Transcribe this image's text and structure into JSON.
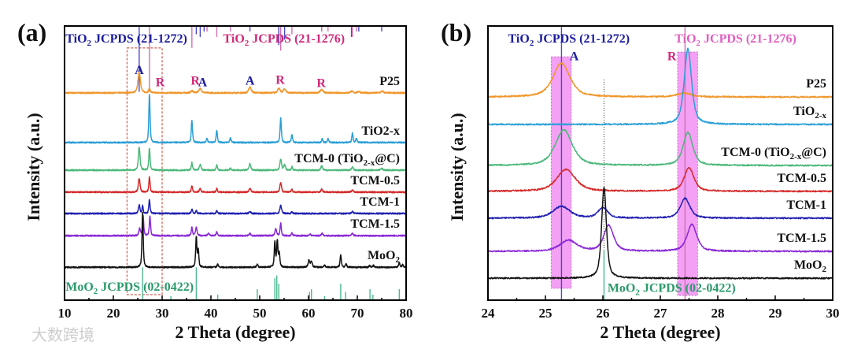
{
  "watermark": "大数跨境",
  "chart_data": [
    {
      "type": "line",
      "panel_label": "(a)",
      "xlabel": "2 Theta (degree)",
      "ylabel": "Intensity (a.u.)",
      "xlim": [
        10,
        80
      ],
      "ylim": [
        0,
        100
      ],
      "xticks": [
        10,
        20,
        30,
        40,
        50,
        60,
        70,
        80
      ],
      "minor_step": 5,
      "ref_labels": [
        {
          "parts": [
            "TiO",
            "2",
            " JCPDS (21-1272)"
          ],
          "color": "#1c1ca0",
          "x": 10.2,
          "y": 94
        },
        {
          "parts": [
            "TiO",
            "2",
            " JCPDS (21-1276)"
          ],
          "color": "#d02a7a",
          "x": 42.5,
          "y": 94
        },
        {
          "parts": [
            "MoO",
            "2",
            " JCPDS (02-0422)"
          ],
          "color": "#2a9a6a",
          "x": 10.2,
          "y": 3.5
        }
      ],
      "phase_labels": [
        {
          "text": "A",
          "x": 25.3,
          "y": 82.5,
          "color": "#1c1ca0"
        },
        {
          "text": "R",
          "x": 29.6,
          "y": 78.0,
          "color": "#d02a7a"
        },
        {
          "text": "R",
          "x": 36.8,
          "y": 78.6,
          "color": "#d02a7a"
        },
        {
          "text": "A",
          "x": 38.3,
          "y": 78.0,
          "color": "#1c1ca0"
        },
        {
          "text": "A",
          "x": 48.0,
          "y": 78.6,
          "color": "#1c1ca0"
        },
        {
          "text": "R",
          "x": 54.2,
          "y": 78.9,
          "color": "#d02a7a"
        },
        {
          "text": "R",
          "x": 62.6,
          "y": 77.7,
          "color": "#d02a7a"
        }
      ],
      "highlight_box": {
        "x": [
          22.8,
          30.0
        ],
        "y": [
          2,
          92
        ],
        "style": "dashed",
        "color": "#c0392b"
      },
      "reference_sticks": [
        {
          "name": "anatase 21-1272",
          "color": "#4a4acc",
          "from": "top",
          "positions": [
            25.3,
            37.0,
            37.8,
            38.6,
            48.0,
            53.9,
            55.1,
            62.7,
            68.8,
            70.3,
            75.0
          ],
          "lengths": [
            24,
            3,
            4,
            2,
            2,
            7,
            5,
            2,
            4,
            2,
            2
          ]
        },
        {
          "name": "rutile 21-1276",
          "color": "#d070b0",
          "from": "top",
          "positions": [
            27.4,
            36.1,
            39.2,
            41.2,
            44.0,
            54.3,
            56.6,
            62.7,
            64.0,
            69.0,
            69.8
          ],
          "lengths": [
            24,
            8,
            2,
            4,
            2,
            9,
            3,
            2,
            2,
            4,
            2
          ]
        },
        {
          "name": "MoO2 02-0422",
          "color": "#4cb890",
          "from": "bottom",
          "positions": [
            26.0,
            31.8,
            37.0,
            41.4,
            49.5,
            53.1,
            53.5,
            53.9,
            60.2,
            60.6,
            63.3,
            66.6,
            67.6,
            72.6,
            73.2,
            78.6
          ],
          "lengths": [
            12,
            1.5,
            12,
            2,
            4,
            8,
            9,
            6,
            3,
            4,
            1.5,
            6,
            3,
            4,
            2,
            4
          ]
        }
      ],
      "series": [
        {
          "name": "P25",
          "label_parts": [
            "P25"
          ],
          "color": "#f0962a",
          "offset": 75.6,
          "peaks": [
            [
              25.3,
              7.5,
              0.6
            ],
            [
              27.4,
              1.5,
              0.4
            ],
            [
              36.1,
              0.8,
              0.5
            ],
            [
              37.8,
              1.5,
              0.7
            ],
            [
              48.0,
              2.2,
              0.6
            ],
            [
              53.9,
              1.6,
              0.6
            ],
            [
              55.1,
              1.4,
              0.6
            ],
            [
              62.7,
              1.2,
              0.7
            ],
            [
              68.8,
              0.6,
              0.6
            ],
            [
              70.3,
              0.5,
              0.6
            ],
            [
              75.1,
              0.6,
              0.6
            ]
          ]
        },
        {
          "name": "TiO2-x",
          "label_parts": [
            "TiO2-x"
          ],
          "color": "#2a9fd6",
          "offset": 57.5,
          "peaks": [
            [
              27.4,
              17.5,
              0.3
            ],
            [
              36.1,
              8,
              0.3
            ],
            [
              39.2,
              1.5,
              0.3
            ],
            [
              41.2,
              4.5,
              0.3
            ],
            [
              44.0,
              1.8,
              0.3
            ],
            [
              54.3,
              9,
              0.3
            ],
            [
              56.6,
              3,
              0.3
            ],
            [
              62.8,
              1.4,
              0.3
            ],
            [
              64.0,
              1.3,
              0.3
            ],
            [
              69.0,
              3.5,
              0.3
            ],
            [
              69.8,
              1.5,
              0.3
            ]
          ]
        },
        {
          "name": "TCM-0 (TiO2-x@C)",
          "label_parts": [
            "TCM-0 (TiO",
            "2-x",
            "@C)"
          ],
          "color": "#4cb87a",
          "offset": 47.4,
          "peaks": [
            [
              25.3,
              8.5,
              0.4
            ],
            [
              27.4,
              8,
              0.3
            ],
            [
              36.1,
              2.8,
              0.3
            ],
            [
              37.8,
              2,
              0.4
            ],
            [
              41.2,
              1.8,
              0.3
            ],
            [
              44.0,
              0.8,
              0.3
            ],
            [
              48.0,
              2.4,
              0.4
            ],
            [
              54.3,
              4,
              0.4
            ],
            [
              55.1,
              2,
              0.4
            ],
            [
              56.6,
              1.2,
              0.3
            ],
            [
              62.7,
              1.6,
              0.4
            ],
            [
              69.0,
              1.3,
              0.4
            ],
            [
              75.0,
              0.6,
              0.5
            ]
          ]
        },
        {
          "name": "TCM-0.5",
          "label_parts": [
            "TCM-0.5"
          ],
          "color": "#d42a2a",
          "offset": 39.4,
          "peaks": [
            [
              25.3,
              5,
              0.4
            ],
            [
              27.4,
              5.5,
              0.3
            ],
            [
              36.1,
              2.2,
              0.3
            ],
            [
              37.8,
              1.2,
              0.4
            ],
            [
              41.2,
              1.3,
              0.3
            ],
            [
              48.0,
              1.5,
              0.4
            ],
            [
              54.3,
              3.5,
              0.4
            ],
            [
              56.6,
              1,
              0.3
            ],
            [
              62.7,
              1,
              0.4
            ],
            [
              69.0,
              0.8,
              0.4
            ]
          ]
        },
        {
          "name": "TCM-1",
          "label_parts": [
            "TCM-1"
          ],
          "color": "#2020b0",
          "offset": 31.6,
          "peaks": [
            [
              25.3,
              3,
              0.4
            ],
            [
              26.0,
              2.8,
              0.25
            ],
            [
              27.4,
              5,
              0.3
            ],
            [
              36.1,
              1.6,
              0.3
            ],
            [
              37.0,
              1.1,
              0.3
            ],
            [
              41.2,
              1,
              0.3
            ],
            [
              48.0,
              0.8,
              0.4
            ],
            [
              54.3,
              3,
              0.4
            ],
            [
              56.6,
              0.7,
              0.3
            ],
            [
              69.0,
              0.8,
              0.4
            ]
          ]
        },
        {
          "name": "TCM-1.5",
          "label_parts": [
            "TCM-1.5"
          ],
          "color": "#8a2ad6",
          "offset": 23.5,
          "peaks": [
            [
              25.4,
              2.5,
              0.4
            ],
            [
              26.1,
              7.5,
              0.3
            ],
            [
              27.5,
              7,
              0.3
            ],
            [
              36.1,
              3,
              0.3
            ],
            [
              37.0,
              3,
              0.4
            ],
            [
              39.5,
              0.8,
              0.4
            ],
            [
              41.2,
              1.5,
              0.3
            ],
            [
              48.0,
              0.8,
              0.4
            ],
            [
              53.3,
              2.5,
              0.4
            ],
            [
              54.3,
              4.5,
              0.3
            ],
            [
              56.6,
              1,
              0.3
            ],
            [
              60.3,
              0.6,
              0.4
            ],
            [
              62.8,
              0.8,
              0.4
            ],
            [
              69.0,
              0.8,
              0.4
            ]
          ]
        },
        {
          "name": "MoO2",
          "label_parts": [
            "MoO",
            "2"
          ],
          "color": "#111111",
          "offset": 12.0,
          "peaks": [
            [
              26.0,
              20,
              0.3
            ],
            [
              37.0,
              11,
              0.3
            ],
            [
              37.4,
              6,
              0.3
            ],
            [
              41.4,
              1.2,
              0.3
            ],
            [
              49.5,
              1.2,
              0.3
            ],
            [
              53.1,
              9,
              0.3
            ],
            [
              53.6,
              9.5,
              0.3
            ],
            [
              54.0,
              5,
              0.3
            ],
            [
              60.1,
              2.5,
              0.4
            ],
            [
              60.6,
              2,
              0.4
            ],
            [
              63.3,
              0.8,
              0.3
            ],
            [
              66.6,
              4.5,
              0.3
            ],
            [
              67.7,
              1.2,
              0.3
            ],
            [
              72.5,
              0.6,
              0.3
            ],
            [
              73.3,
              0.7,
              0.3
            ],
            [
              78.6,
              1.8,
              0.3
            ],
            [
              79.3,
              1,
              0.3
            ]
          ]
        }
      ]
    },
    {
      "type": "line",
      "panel_label": "(b)",
      "xlabel": "2 Theta (degree)",
      "ylabel": "Intensity (a.u.)",
      "xlim": [
        24,
        30
      ],
      "ylim": [
        0,
        100
      ],
      "xticks": [
        24,
        25,
        26,
        27,
        28,
        29,
        30
      ],
      "minor_step": 0.5,
      "ref_labels": [
        {
          "parts": [
            "TiO",
            "2",
            " JCPDS (21-1272)"
          ],
          "color": "#1c1ca0",
          "x": 24.35,
          "y": 94
        },
        {
          "parts": [
            "TiO",
            "2",
            " JCPDS (21-1276)"
          ],
          "color": "#e060c0",
          "x": 27.25,
          "y": 94
        },
        {
          "parts": [
            "MoO",
            "2",
            " JCPDS (02-0422)"
          ],
          "color": "#2a9a6a",
          "x": 26.08,
          "y": 3.0
        }
      ],
      "phase_labels": [
        {
          "text": "A",
          "x": 25.5,
          "y": 87.5,
          "color": "#1c1ca0"
        },
        {
          "text": "R",
          "x": 27.2,
          "y": 87.5,
          "color": "#d02a7a"
        }
      ],
      "highlight_bands": [
        {
          "x": [
            25.1,
            25.45
          ],
          "y": [
            4.3,
            88.8
          ],
          "color": "#f080f0"
        },
        {
          "x": [
            27.3,
            27.65
          ],
          "y": [
            1.7,
            90.5
          ],
          "color": "#f080f0"
        }
      ],
      "dotted_line": {
        "x": 26.02,
        "y": [
          0,
          81
        ]
      },
      "reference_sticks": [
        {
          "name": "anatase 21-1272",
          "color": "#4a4acc",
          "from": "top",
          "positions": [
            25.28
          ],
          "lengths": [
            100
          ]
        },
        {
          "name": "rutile 21-1276",
          "color": "#d070b0",
          "from": "top",
          "positions": [
            27.43
          ],
          "lengths": [
            100
          ]
        },
        {
          "name": "MoO2 02-0422",
          "color": "#4cb890",
          "from": "bottom",
          "positions": [
            26.02
          ],
          "lengths": [
            18
          ]
        }
      ],
      "series": [
        {
          "name": "P25",
          "label_parts": [
            "P25"
          ],
          "color": "#f0962a",
          "offset": 74.1,
          "peaks": [
            [
              25.28,
              12.4,
              0.35
            ],
            [
              27.42,
              1.4,
              0.3
            ]
          ]
        },
        {
          "name": "TiO2-x",
          "label_parts": [
            "TiO",
            "2-x"
          ],
          "color": "#2a9fd6",
          "offset": 64.1,
          "peaks": [
            [
              27.48,
              27.6,
              0.15
            ]
          ]
        },
        {
          "name": "TCM-0 (TiO2-x@C)",
          "label_parts": [
            "TCM-0 (TiO",
            "2-x",
            "@C)"
          ],
          "color": "#4cb87a",
          "offset": 49.1,
          "peaks": [
            [
              25.32,
              13,
              0.35
            ],
            [
              27.48,
              12,
              0.2
            ]
          ]
        },
        {
          "name": "TCM-0.5",
          "label_parts": [
            "TCM-0.5"
          ],
          "color": "#d42a2a",
          "offset": 39.7,
          "peaks": [
            [
              25.36,
              8,
              0.38
            ],
            [
              27.5,
              8.5,
              0.2
            ]
          ]
        },
        {
          "name": "TCM-1",
          "label_parts": [
            "TCM-1"
          ],
          "color": "#2020b0",
          "offset": 29.9,
          "peaks": [
            [
              25.28,
              4.3,
              0.35
            ],
            [
              26.0,
              3.8,
              0.2
            ],
            [
              27.43,
              7.2,
              0.2
            ]
          ]
        },
        {
          "name": "TCM-1.5",
          "label_parts": [
            "TCM-1.5"
          ],
          "color": "#8a2ad6",
          "offset": 17.8,
          "peaks": [
            [
              25.4,
              4.0,
              0.35
            ],
            [
              26.1,
              9.5,
              0.2
            ],
            [
              27.55,
              9.8,
              0.2
            ]
          ]
        },
        {
          "name": "MoO2",
          "label_parts": [
            "MoO",
            "2"
          ],
          "color": "#111111",
          "offset": 8.0,
          "peaks": [
            [
              26.02,
              33,
              0.1
            ]
          ]
        }
      ]
    }
  ]
}
